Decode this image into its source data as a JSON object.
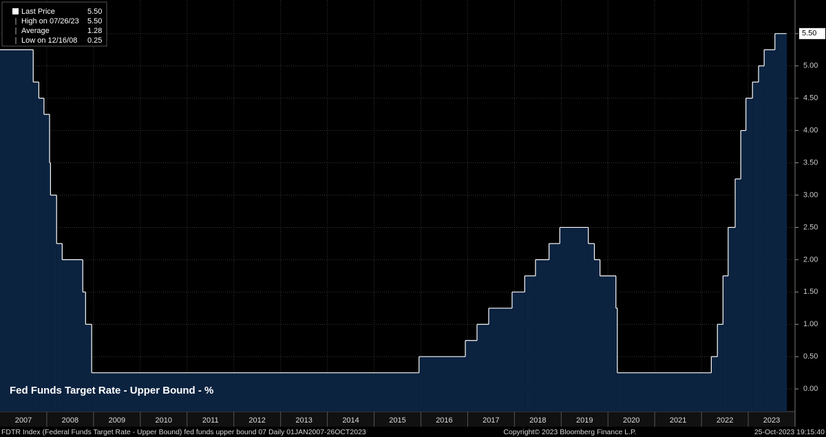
{
  "chart_data": {
    "type": "step-area",
    "title": "Fed Funds Target Rate - Upper Bound - %",
    "x": [
      2007.0,
      2007.71,
      2007.83,
      2007.94,
      2008.06,
      2008.08,
      2008.21,
      2008.33,
      2008.77,
      2008.83,
      2008.96,
      2015.96,
      2016.95,
      2017.2,
      2017.45,
      2017.95,
      2018.22,
      2018.45,
      2018.74,
      2018.97,
      2019.58,
      2019.71,
      2019.83,
      2020.17,
      2020.2,
      2022.21,
      2022.34,
      2022.46,
      2022.57,
      2022.72,
      2022.84,
      2022.95,
      2023.09,
      2023.22,
      2023.34,
      2023.57,
      2023.82
    ],
    "values": [
      5.25,
      4.75,
      4.5,
      4.25,
      3.5,
      3.0,
      2.25,
      2.0,
      1.5,
      1.0,
      0.25,
      0.5,
      0.75,
      1.0,
      1.25,
      1.5,
      1.75,
      2.0,
      2.25,
      2.5,
      2.25,
      2.0,
      1.75,
      1.25,
      0.25,
      0.5,
      1.0,
      1.75,
      2.5,
      3.25,
      4.0,
      4.5,
      4.75,
      5.0,
      5.25,
      5.5,
      5.5
    ],
    "line_color": "#ffffff",
    "fill_color": "#0c2340",
    "xlim": [
      2007.0,
      2024.0
    ],
    "xticks": [
      {
        "value": 2007.5,
        "label": "2007"
      },
      {
        "value": 2008.5,
        "label": "2008"
      },
      {
        "value": 2009.5,
        "label": "2009"
      },
      {
        "value": 2010.5,
        "label": "2010"
      },
      {
        "value": 2011.5,
        "label": "2011"
      },
      {
        "value": 2012.5,
        "label": "2012"
      },
      {
        "value": 2013.5,
        "label": "2013"
      },
      {
        "value": 2014.5,
        "label": "2014"
      },
      {
        "value": 2015.5,
        "label": "2015"
      },
      {
        "value": 2016.5,
        "label": "2016"
      },
      {
        "value": 2017.5,
        "label": "2017"
      },
      {
        "value": 2018.5,
        "label": "2018"
      },
      {
        "value": 2019.5,
        "label": "2019"
      },
      {
        "value": 2020.5,
        "label": "2020"
      },
      {
        "value": 2021.5,
        "label": "2021"
      },
      {
        "value": 2022.5,
        "label": "2022"
      },
      {
        "value": 2023.5,
        "label": "2023"
      }
    ],
    "ylim": [
      -0.35,
      6.02
    ],
    "yticks": [
      {
        "value": 0,
        "label": "0.00"
      },
      {
        "value": 0.5,
        "label": "0.50"
      },
      {
        "value": 1,
        "label": "1.00"
      },
      {
        "value": 1.5,
        "label": "1.50"
      },
      {
        "value": 2,
        "label": "2.00"
      },
      {
        "value": 2.5,
        "label": "2.50"
      },
      {
        "value": 3,
        "label": "3.00"
      },
      {
        "value": 3.5,
        "label": "3.50"
      },
      {
        "value": 4,
        "label": "4.00"
      },
      {
        "value": 4.5,
        "label": "4.50"
      },
      {
        "value": 5,
        "label": "5.00"
      },
      {
        "value": 5.5,
        "label": "5.50"
      }
    ],
    "grid": true,
    "stats": [
      {
        "name": "Last Price",
        "value": "5.50"
      },
      {
        "name": "High on 07/26/23",
        "value": "5.50"
      },
      {
        "name": "Average",
        "value": "1.28"
      },
      {
        "name": "Low on 12/16/08",
        "value": "0.25"
      }
    ],
    "footer": {
      "left": "FDTR Index (Federal Funds Target Rate - Upper Bound) fed funds upper bound 07  Daily 01JAN2007-26OCT2023",
      "center": "Copyright© 2023 Bloomberg Finance L.P.",
      "right": "25-Oct-2023 19:15:40"
    }
  }
}
